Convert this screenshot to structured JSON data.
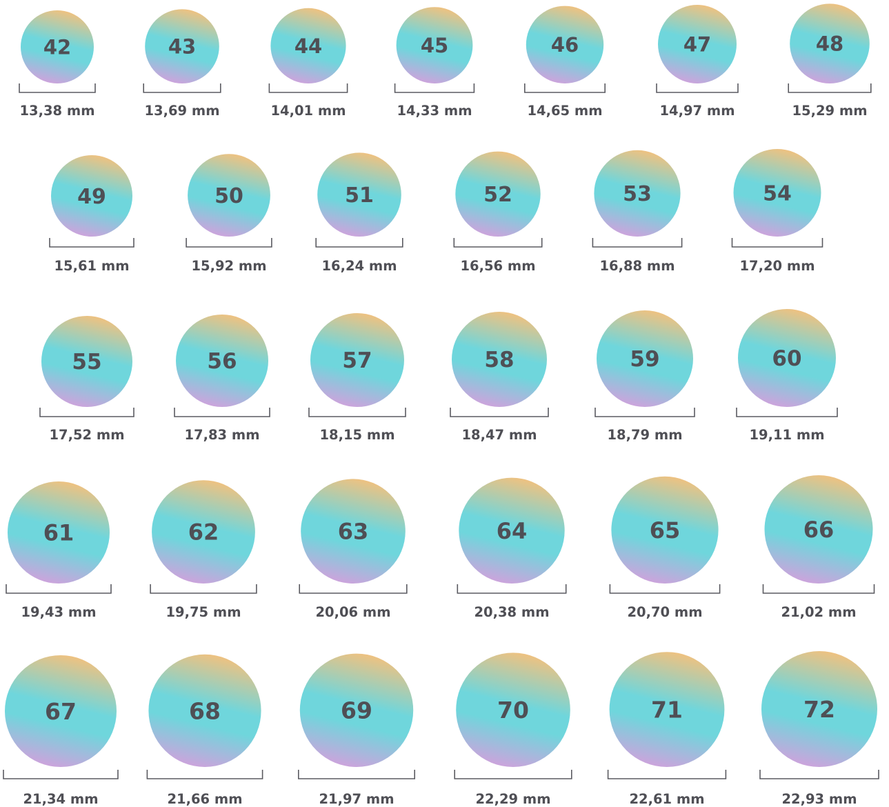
{
  "colors": {
    "gradient_top": "#f2c17e",
    "gradient_mid": "#6fd6dc",
    "gradient_bottom": "#cfa2dc",
    "text": "#4f4f55",
    "bracket": "#5a5a60"
  },
  "rows": [
    [
      {
        "size": "42",
        "diameter": "13,38 mm"
      },
      {
        "size": "43",
        "diameter": "13,69 mm"
      },
      {
        "size": "44",
        "diameter": "14,01 mm"
      },
      {
        "size": "45",
        "diameter": "14,33 mm"
      },
      {
        "size": "46",
        "diameter": "14,65 mm"
      },
      {
        "size": "47",
        "diameter": "14,97 mm"
      },
      {
        "size": "48",
        "diameter": "15,29 mm"
      }
    ],
    [
      {
        "size": "49",
        "diameter": "15,61 mm"
      },
      {
        "size": "50",
        "diameter": "15,92 mm"
      },
      {
        "size": "51",
        "diameter": "16,24 mm"
      },
      {
        "size": "52",
        "diameter": "16,56 mm"
      },
      {
        "size": "53",
        "diameter": "16,88 mm"
      },
      {
        "size": "54",
        "diameter": "17,20 mm"
      }
    ],
    [
      {
        "size": "55",
        "diameter": "17,52 mm"
      },
      {
        "size": "56",
        "diameter": "17,83 mm"
      },
      {
        "size": "57",
        "diameter": "18,15 mm"
      },
      {
        "size": "58",
        "diameter": "18,47 mm"
      },
      {
        "size": "59",
        "diameter": "18,79 mm"
      },
      {
        "size": "60",
        "diameter": "19,11 mm"
      }
    ],
    [
      {
        "size": "61",
        "diameter": "19,43 mm"
      },
      {
        "size": "62",
        "diameter": "19,75 mm"
      },
      {
        "size": "63",
        "diameter": "20,06 mm"
      },
      {
        "size": "64",
        "diameter": "20,38 mm"
      },
      {
        "size": "65",
        "diameter": "20,70 mm"
      },
      {
        "size": "66",
        "diameter": "21,02 mm"
      }
    ],
    [
      {
        "size": "67",
        "diameter": "21,34 mm"
      },
      {
        "size": "68",
        "diameter": "21,66 mm"
      },
      {
        "size": "69",
        "diameter": "21,97 mm"
      },
      {
        "size": "70",
        "diameter": "22,29 mm"
      },
      {
        "size": "71",
        "diameter": "22,61 mm"
      },
      {
        "size": "72",
        "diameter": "22,93 mm"
      }
    ]
  ]
}
